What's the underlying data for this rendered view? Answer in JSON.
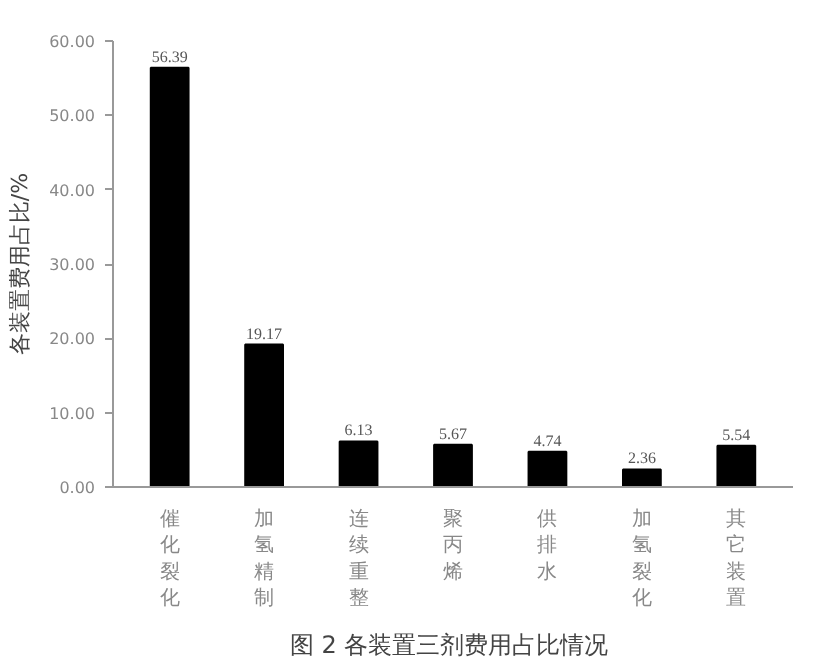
{
  "chart_data": {
    "type": "bar",
    "title": "图 2  各装置三剂费用占比情况",
    "ylabel": "各装置费用占比/%",
    "categories": [
      "催化裂化",
      "加氢精制",
      "连续重整",
      "聚丙烯",
      "供排水",
      "加氢裂化",
      "其它装置"
    ],
    "values": [
      56.39,
      19.17,
      6.13,
      5.67,
      4.74,
      2.36,
      5.54
    ],
    "color": "#000000",
    "ylim": [
      0,
      60
    ],
    "yticks": [
      {
        "value": 0,
        "label": "0.00"
      },
      {
        "value": 10,
        "label": "10.00"
      },
      {
        "value": 20,
        "label": "20.00"
      },
      {
        "value": 30,
        "label": "30.00"
      },
      {
        "value": 40,
        "label": "40.00"
      },
      {
        "value": 50,
        "label": "50.00"
      },
      {
        "value": 60,
        "label": "60.00"
      }
    ],
    "data_labels": true,
    "grid": false
  }
}
